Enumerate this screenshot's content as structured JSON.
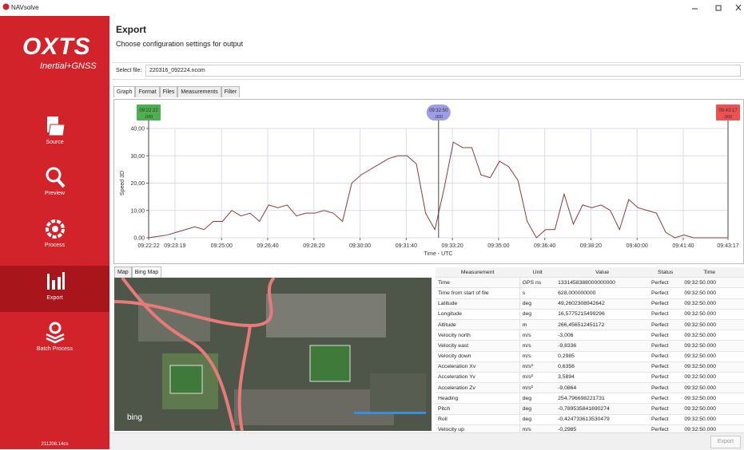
{
  "window": {
    "title": "NAVsolve"
  },
  "sidebar": {
    "logo": "OXTS",
    "logo_sub": "Inertial+GNSS",
    "nav": [
      "Source",
      "Preview",
      "Process",
      "Export",
      "Batch Process"
    ],
    "version": "211208.14cs"
  },
  "header": {
    "title": "Export",
    "subtitle": "Choose configuration settings for output"
  },
  "file": {
    "label": "Select file:",
    "value": "220316_092224.ncom"
  },
  "tabs": [
    "Graph",
    "Format",
    "Files",
    "Measurements",
    "Filter"
  ],
  "chart_data": {
    "type": "line",
    "y_label": "Speed 3D",
    "x_label": "Time - UTC",
    "color": "#8b3a3a",
    "grid": true,
    "x": [
      33742,
      33762,
      33782,
      33802,
      33822,
      33842,
      33862,
      33882,
      33902,
      33922,
      33942,
      33962,
      33982,
      34002,
      34022,
      34042,
      34062,
      34082,
      34102,
      34122,
      34142,
      34162,
      34182,
      34202,
      34222,
      34242,
      34262,
      34282,
      34302,
      34322,
      34342,
      34362,
      34382,
      34402,
      34422,
      34442,
      34462,
      34482,
      34502,
      34522,
      34542,
      34562,
      34582,
      34602,
      34622,
      34642,
      34662,
      34682,
      34702,
      34722,
      34742,
      34762,
      34782,
      34802,
      34822,
      34842,
      34862,
      34882,
      34902,
      34922,
      34942,
      34962,
      34982,
      34997
    ],
    "values": [
      0,
      0.5,
      1,
      2,
      3,
      4,
      3,
      6,
      6,
      10,
      8,
      9,
      6,
      12,
      11,
      12,
      8,
      9,
      9,
      10,
      9,
      6,
      20,
      23,
      25,
      27,
      29,
      30,
      30,
      27,
      9,
      3,
      18,
      35,
      33,
      33,
      23,
      22,
      28,
      26,
      21,
      6,
      0,
      3,
      3,
      16,
      5,
      12,
      11,
      12,
      10,
      3,
      14,
      11,
      10,
      9,
      2,
      0,
      1,
      0,
      0,
      0,
      0,
      0
    ],
    "xlim": [
      33742,
      34997
    ],
    "xticks": [
      {
        "value": 33742,
        "label": "09:22:22"
      },
      {
        "value": 33799,
        "label": "09:23:19"
      },
      {
        "value": 33900,
        "label": "09:25:00"
      },
      {
        "value": 34000,
        "label": "09:26:40"
      },
      {
        "value": 34100,
        "label": "09:28:20"
      },
      {
        "value": 34200,
        "label": "09:30:00"
      },
      {
        "value": 34300,
        "label": "09:31:40"
      },
      {
        "value": 34400,
        "label": "09:33:20"
      },
      {
        "value": 34500,
        "label": "09:35:00"
      },
      {
        "value": 34600,
        "label": "09:36:40"
      },
      {
        "value": 34700,
        "label": "09:38:20"
      },
      {
        "value": 34800,
        "label": "09:40:00"
      },
      {
        "value": 34900,
        "label": "09:41:40"
      },
      {
        "value": 34997,
        "label": "09:43:17"
      }
    ],
    "ylim": [
      0,
      40
    ],
    "yticks": [
      {
        "value": 0,
        "label": "0,00"
      },
      {
        "value": 10,
        "label": "10,00"
      },
      {
        "value": 20,
        "label": "20,00"
      },
      {
        "value": 30,
        "label": "30,00"
      },
      {
        "value": 40,
        "label": "40,00"
      }
    ],
    "cursors": [
      {
        "value": 33742,
        "label": "09:22:22",
        "sub": ".000",
        "color": "#4caf50"
      },
      {
        "value": 34370,
        "label": "09:32:50",
        "sub": ".000",
        "color": "#9f9de8"
      },
      {
        "value": 34997,
        "label": "09:43:17",
        "sub": ".000",
        "color": "#f05050"
      }
    ]
  },
  "map": {
    "tabs": [
      "Map",
      "Bing Map"
    ],
    "brand": "bing"
  },
  "table": {
    "columns": [
      "Measurement",
      "Unit",
      "Value",
      "Status",
      "Time"
    ],
    "rows": [
      [
        "Time",
        "GPS ns",
        "1331458388000000000",
        "Perfect",
        "09:32:50.000"
      ],
      [
        "Time from start of file",
        "s",
        "628,000000000",
        "Perfect",
        "09:32:50.000"
      ],
      [
        "Latitude",
        "deg",
        "49,2602308942642",
        "Perfect",
        "09:32:50.000"
      ],
      [
        "Longitude",
        "deg",
        "16,5775215499296",
        "Perfect",
        "09:32:50.000"
      ],
      [
        "Altitude",
        "m",
        "266,456512451172",
        "Perfect",
        "09:32:50.000"
      ],
      [
        "Velocity north",
        "m/s",
        "-3,006",
        "Perfect",
        "09:32:50.000"
      ],
      [
        "Velocity east",
        "m/s",
        "-9,8336",
        "Perfect",
        "09:32:50.000"
      ],
      [
        "Velocity down",
        "m/s",
        "0,2985",
        "Perfect",
        "09:32:50.000"
      ],
      [
        "Acceleration Xv",
        "m/s²",
        "0,6356",
        "Perfect",
        "09:32:50.000"
      ],
      [
        "Acceleration Yv",
        "m/s²",
        "3,5894",
        "Perfect",
        "09:32:50.000"
      ],
      [
        "Acceleration Zv",
        "m/s²",
        "-9,0864",
        "Perfect",
        "09:32:50.000"
      ],
      [
        "Heading",
        "deg",
        "254,796698221731",
        "Perfect",
        "09:32:50.000"
      ],
      [
        "Pitch",
        "deg",
        "-0,789535841690274",
        "Perfect",
        "09:32:50.000"
      ],
      [
        "Roll",
        "deg",
        "-0,424733613530479",
        "Perfect",
        "09:32:50.000"
      ],
      [
        "Velocity up",
        "m/s",
        "-0,2985",
        "Perfect",
        "09:32:50.000"
      ]
    ]
  },
  "footer": {
    "button": "Export"
  }
}
